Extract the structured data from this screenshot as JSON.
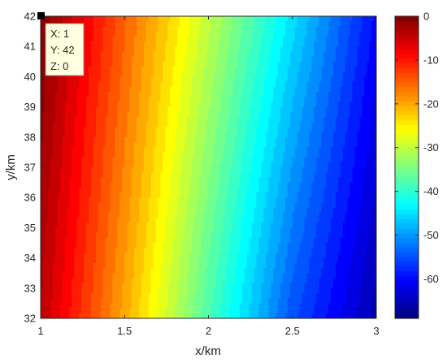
{
  "chart_data": {
    "type": "heatmap",
    "subtype": "filled-contour",
    "title": "",
    "xlabel": "x/km",
    "ylabel": "y/km",
    "xlim": [
      1,
      3
    ],
    "ylim": [
      32,
      42
    ],
    "xticks": [
      "1",
      "1.5",
      "2",
      "2.5",
      "3"
    ],
    "yticks": [
      "32",
      "33",
      "34",
      "35",
      "36",
      "37",
      "38",
      "39",
      "40",
      "41",
      "42"
    ],
    "grid": false,
    "colormap": "jet",
    "colorbar": {
      "location": "right",
      "clim": [
        -69,
        0
      ],
      "ticks": [
        "-60",
        "-50",
        "-40",
        "-30",
        "-20",
        "-10",
        "0"
      ]
    },
    "field": {
      "description": "z decreases with x; contours tilt so that value is slightly higher at top",
      "samples": [
        {
          "x": 1.0,
          "y": 32,
          "z": -4
        },
        {
          "x": 1.0,
          "y": 42,
          "z": 0
        },
        {
          "x": 1.5,
          "y": 32,
          "z": -20
        },
        {
          "x": 1.5,
          "y": 42,
          "z": -15
        },
        {
          "x": 2.0,
          "y": 32,
          "z": -38
        },
        {
          "x": 2.0,
          "y": 42,
          "z": -30
        },
        {
          "x": 2.5,
          "y": 32,
          "z": -55
        },
        {
          "x": 2.5,
          "y": 42,
          "z": -45
        },
        {
          "x": 3.0,
          "y": 32,
          "z": -66
        },
        {
          "x": 3.0,
          "y": 42,
          "z": -60
        }
      ]
    },
    "datatip": {
      "lines": [
        "X: 1",
        "Y: 42",
        "Z: 0"
      ],
      "point": {
        "x": 1,
        "y": 42,
        "z": 0
      }
    }
  }
}
